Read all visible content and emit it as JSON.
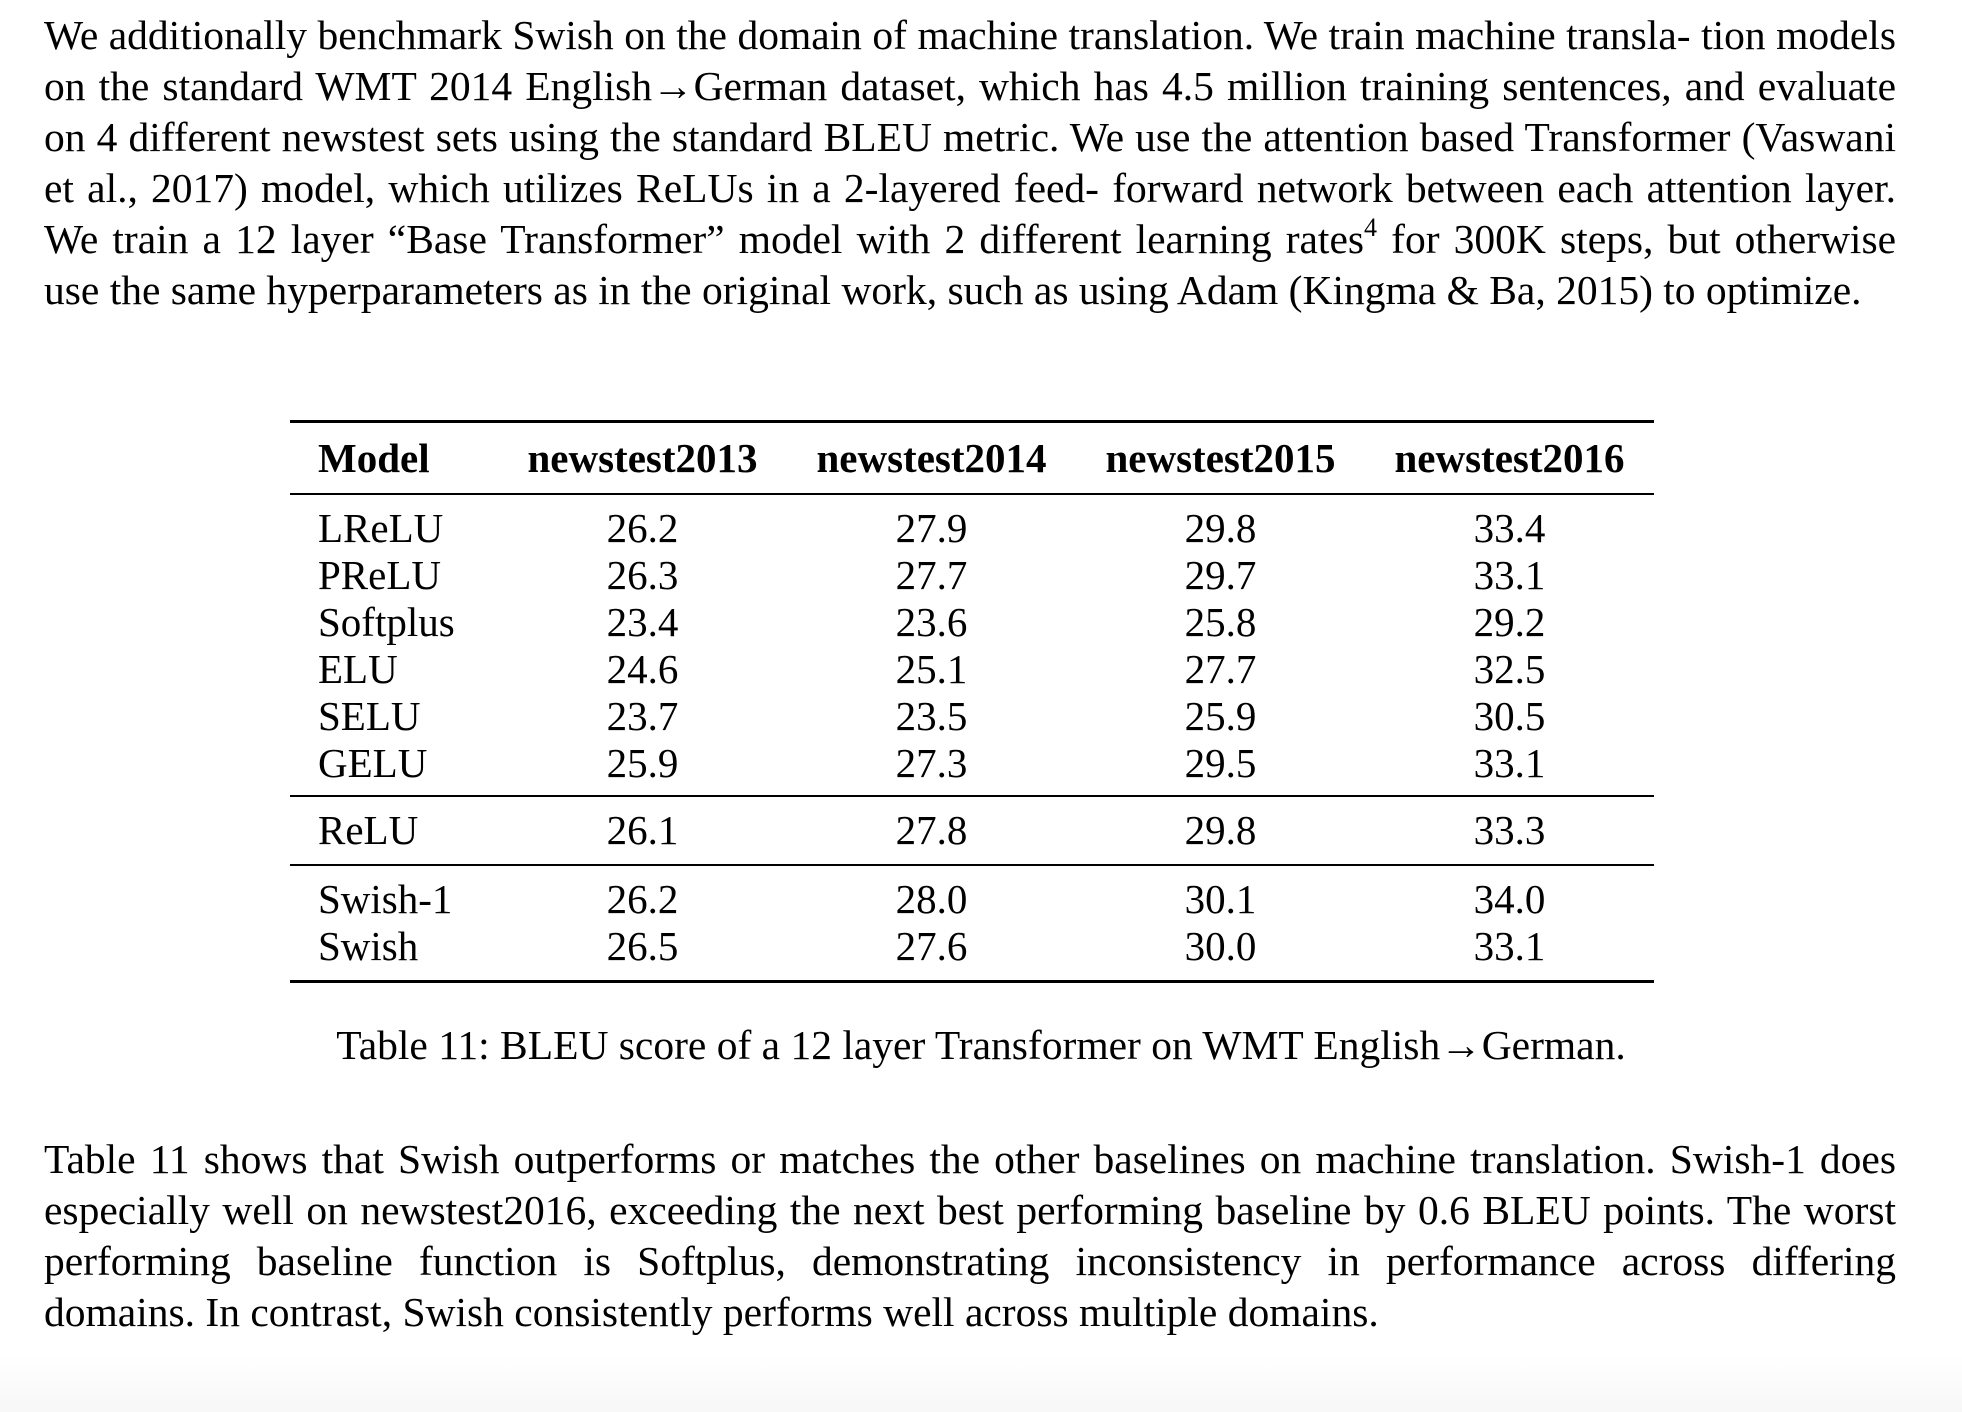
{
  "paragraph_top": {
    "lines": [
      "We additionally benchmark Swish on the domain of machine translation. We train machine transla-",
      "tion models on the standard WMT 2014 English→German dataset, which has 4.5 million training",
      "sentences, and evaluate on 4 different newstest sets using the standard BLEU metric.  We use the",
      "attention based Transformer (Vaswani et al., 2017) model, which utilizes ReLUs in a 2-layered feed-",
      "forward network between each attention layer. We train a 12 layer “Base Transformer” model with"
    ],
    "line6_before_footnote": "2 different learning rates",
    "footnote_mark": "4",
    "line6_after_footnote": " for 300K steps, but otherwise use the same hyperparameters as in the",
    "line7": "original work, such as using Adam (Kingma & Ba, 2015) to optimize."
  },
  "table": {
    "headers": [
      "Model",
      "newstest2013",
      "newstest2014",
      "newstest2015",
      "newstest2016"
    ],
    "groups": [
      [
        [
          "LReLU",
          "26.2",
          "27.9",
          "29.8",
          "33.4"
        ],
        [
          "PReLU",
          "26.3",
          "27.7",
          "29.7",
          "33.1"
        ],
        [
          "Softplus",
          "23.4",
          "23.6",
          "25.8",
          "29.2"
        ],
        [
          "ELU",
          "24.6",
          "25.1",
          "27.7",
          "32.5"
        ],
        [
          "SELU",
          "23.7",
          "23.5",
          "25.9",
          "30.5"
        ],
        [
          "GELU",
          "25.9",
          "27.3",
          "29.5",
          "33.1"
        ]
      ],
      [
        [
          "ReLU",
          "26.1",
          "27.8",
          "29.8",
          "33.3"
        ]
      ],
      [
        [
          "Swish-1",
          "26.2",
          "28.0",
          "30.1",
          "34.0"
        ],
        [
          "Swish",
          "26.5",
          "27.6",
          "30.0",
          "33.1"
        ]
      ]
    ]
  },
  "caption": "Table 11: BLEU score of a 12 layer Transformer on WMT English→German.",
  "paragraph_bottom": {
    "lines": [
      "Table 11 shows that Swish outperforms or matches the other baselines on machine translation.",
      "Swish-1 does especially well on newstest2016, exceeding the next best performing baseline by 0.6",
      "BLEU points. The worst performing baseline function is Softplus, demonstrating inconsistency in",
      "performance across differing domains. In contrast, Swish consistently performs well across multiple",
      "domains."
    ]
  }
}
